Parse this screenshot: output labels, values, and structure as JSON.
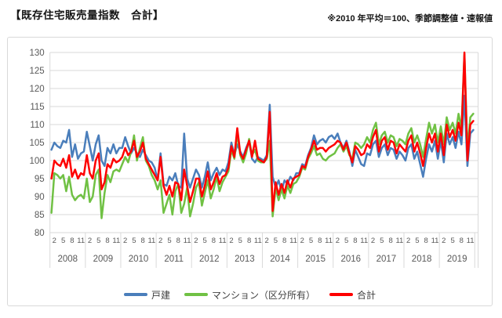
{
  "header": {
    "title": "【既存住宅販売量指数　合計】",
    "note": "※2010 年平均＝100、季節調整値・速報値"
  },
  "chart_data": {
    "type": "line",
    "title": "既存住宅販売量指数 合計",
    "x_axis": {
      "unit": "month",
      "years": [
        2008,
        2009,
        2010,
        2011,
        2012,
        2013,
        2014,
        2015,
        2016,
        2017,
        2018,
        2019
      ],
      "month_tick_labels": [
        "2",
        "5",
        "8",
        "11"
      ],
      "months_per_year": 12
    },
    "y_axis": {
      "min": 80,
      "max": 130,
      "tick_step": 5
    },
    "grid": "horizontal",
    "legend_position": "bottom",
    "axis_text_color": "#595959",
    "grid_color": "#d9d9d9",
    "series": [
      {
        "name": "戸建",
        "color": "#4a7ebb",
        "values": [
          103,
          105,
          104,
          103.5,
          105.5,
          105,
          108.5,
          101,
          104.5,
          100.5,
          102,
          102.5,
          108,
          104,
          100,
          104.5,
          107,
          100,
          98.5,
          103.5,
          102,
          104.5,
          102,
          103.5,
          103.5,
          106.5,
          104,
          102,
          103.5,
          102,
          101,
          103,
          101.5,
          100,
          99.5,
          98,
          94.5,
          102,
          93.5,
          93,
          95.5,
          94.5,
          96.5,
          93,
          92.5,
          107.5,
          95,
          92.5,
          95,
          97.5,
          96,
          92.5,
          95.5,
          99.5,
          94.5,
          96.5,
          98,
          96,
          97.5,
          97,
          99.5,
          105,
          101.5,
          104.5,
          102.5,
          101,
          103.5,
          105.5,
          100.5,
          99.5,
          101,
          100.5,
          100,
          101.5,
          115.5,
          95.5,
          92.5,
          94.5,
          91.5,
          94.5,
          93.5,
          95.5,
          94.5,
          96.5,
          96.5,
          99,
          98.5,
          101.5,
          103.5,
          107,
          104.5,
          105.5,
          106,
          105,
          106.5,
          107,
          106,
          107.5,
          105,
          103.5,
          105.5,
          102.5,
          98.5,
          103,
          101,
          99,
          98.5,
          102,
          101.5,
          104.5,
          105.5,
          101,
          103.5,
          104.5,
          101.5,
          103.5,
          103,
          100.5,
          102.5,
          101.5,
          100,
          103.5,
          104.5,
          100.5,
          102.5,
          99,
          95.5,
          100.5,
          104.5,
          102.5,
          105.5,
          100.5,
          105.5,
          99.5,
          107.5,
          104.5,
          106.5,
          103.5,
          108,
          104.5,
          118,
          98.5,
          107.5,
          108.5
        ]
      },
      {
        "name": "マンション（区分所有）",
        "color": "#70c144",
        "values": [
          85.5,
          96.5,
          96,
          95,
          96,
          91.5,
          95.5,
          90.5,
          89,
          90,
          90.5,
          89.5,
          95,
          88.5,
          90,
          96,
          97.5,
          84,
          91,
          96,
          94,
          97,
          97.5,
          97,
          99,
          101,
          99.5,
          102.5,
          107,
          100,
          103.5,
          106.5,
          100,
          98.5,
          96,
          94.5,
          92,
          94.5,
          85.5,
          88,
          90.5,
          85,
          91.5,
          93.5,
          85.5,
          88,
          92.5,
          84.5,
          88,
          92.5,
          94,
          87.5,
          91,
          94.5,
          89.5,
          92,
          95.5,
          91.5,
          94,
          95.5,
          97,
          103,
          100.5,
          107.5,
          101.5,
          99.5,
          102,
          106,
          101.5,
          103,
          100,
          99.5,
          99.5,
          100.5,
          105.5,
          84.5,
          92.5,
          89,
          92,
          89.5,
          93,
          91,
          93.5,
          94,
          95.5,
          98,
          97.5,
          100.5,
          102,
          104,
          101.5,
          102,
          100.5,
          100,
          101,
          101.5,
          102,
          103.5,
          104.5,
          102.5,
          104,
          101.5,
          100.5,
          105,
          104.5,
          103.5,
          104.5,
          106.5,
          105,
          108.5,
          110.5,
          104.5,
          107,
          108,
          105,
          107,
          106.5,
          104,
          106,
          105.5,
          104.5,
          107.5,
          109,
          105,
          107,
          104.5,
          101,
          106,
          110.5,
          107.5,
          110,
          105,
          109.5,
          104.5,
          112,
          108.5,
          110.5,
          107.5,
          113,
          109,
          129.5,
          103,
          112,
          113
        ]
      },
      {
        "name": "合計",
        "color": "#fe0000",
        "values": [
          95,
          100,
          99,
          98.5,
          100.5,
          98,
          101.5,
          95.5,
          97.5,
          95,
          96.5,
          96,
          101.5,
          96.5,
          95,
          100,
          102,
          92,
          94,
          99,
          98,
          100.5,
          99.5,
          100,
          101,
          103.5,
          101.5,
          102.5,
          105.5,
          101,
          102.5,
          105,
          100.5,
          99,
          97.5,
          96,
          94.5,
          101,
          93,
          90.5,
          93,
          90,
          94,
          93.5,
          89,
          97.5,
          93,
          88.5,
          91.5,
          95,
          95,
          90,
          93,
          97,
          92,
          94,
          96.5,
          93.5,
          95.5,
          96,
          98,
          104,
          101,
          109,
          102,
          100.5,
          103,
          105.5,
          101,
          105.5,
          100.5,
          100,
          99.5,
          101,
          113.5,
          86,
          94,
          90.5,
          93.5,
          91,
          94.5,
          92.5,
          95,
          95.5,
          96,
          98.5,
          98,
          101,
          103,
          105.5,
          103,
          103.5,
          103.5,
          102.5,
          103.5,
          104,
          104.5,
          105.5,
          105,
          103,
          105,
          102,
          99.5,
          104,
          103,
          101.5,
          102,
          104.5,
          103.5,
          106.5,
          108.5,
          102.5,
          105.5,
          106.5,
          103,
          105.5,
          105,
          102,
          104.5,
          103.5,
          102.5,
          105.5,
          107,
          102.5,
          105,
          102,
          98.5,
          103.5,
          107.5,
          105,
          107.5,
          102.5,
          107.5,
          101.5,
          110,
          106.5,
          108.5,
          105.5,
          110.5,
          107,
          130,
          100,
          110,
          111
        ]
      }
    ]
  }
}
